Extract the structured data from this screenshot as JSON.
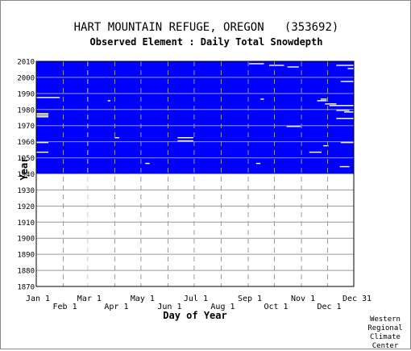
{
  "chart_data": {
    "type": "heatmap",
    "title": "HART MOUNTAIN REFUGE, OREGON   (353692)",
    "subtitle": "Observed Element : Daily Total Snowdepth",
    "xlabel": "Day of Year",
    "ylabel": "Year",
    "x_range": [
      1,
      365
    ],
    "y_range": [
      1870,
      2010
    ],
    "x_ticks_upper": [
      {
        "label": "Jan 1",
        "day": 1
      },
      {
        "label": "Mar 1",
        "day": 60
      },
      {
        "label": "May 1",
        "day": 121
      },
      {
        "label": "Jul 1",
        "day": 182
      },
      {
        "label": "Sep 1",
        "day": 244
      },
      {
        "label": "Nov 1",
        "day": 305
      },
      {
        "label": "Dec 31",
        "day": 365
      }
    ],
    "x_ticks_lower": [
      {
        "label": "Feb 1",
        "day": 32
      },
      {
        "label": "Apr 1",
        "day": 91
      },
      {
        "label": "Jun 1",
        "day": 152
      },
      {
        "label": "Aug 1",
        "day": 213
      },
      {
        "label": "Oct 1",
        "day": 274
      },
      {
        "label": "Dec 1",
        "day": 335
      }
    ],
    "y_ticks": [
      1870,
      1880,
      1890,
      1900,
      1910,
      1920,
      1930,
      1940,
      1950,
      1960,
      1970,
      1980,
      1990,
      2000,
      2010
    ],
    "data_coverage": {
      "first_year": 1940,
      "last_year": 2009,
      "first_day": 1,
      "last_day": 365
    },
    "grid": true,
    "colors": {
      "observed": "#0000ff",
      "missing": "#ffffff",
      "grid": "#999999"
    },
    "missing_segments": [
      {
        "year": 2008,
        "start_day": 245,
        "end_day": 262
      },
      {
        "year": 2007,
        "start_day": 268,
        "end_day": 285
      },
      {
        "year": 2007,
        "start_day": 345,
        "end_day": 365
      },
      {
        "year": 2006,
        "start_day": 289,
        "end_day": 302
      },
      {
        "year": 2005,
        "start_day": 358,
        "end_day": 365
      },
      {
        "year": 1997,
        "start_day": 350,
        "end_day": 365
      },
      {
        "year": 1987,
        "start_day": 1,
        "end_day": 28
      },
      {
        "year": 1986,
        "start_day": 258,
        "end_day": 262
      },
      {
        "year": 1986,
        "start_day": 327,
        "end_day": 334
      },
      {
        "year": 1985,
        "start_day": 83,
        "end_day": 86
      },
      {
        "year": 1985,
        "start_day": 323,
        "end_day": 334
      },
      {
        "year": 1983,
        "start_day": 332,
        "end_day": 345
      },
      {
        "year": 1982,
        "start_day": 337,
        "end_day": 365
      },
      {
        "year": 1979,
        "start_day": 345,
        "end_day": 360
      },
      {
        "year": 1978,
        "start_day": 354,
        "end_day": 365
      },
      {
        "year": 1977,
        "start_day": 1,
        "end_day": 15
      },
      {
        "year": 1976,
        "start_day": 1,
        "end_day": 15
      },
      {
        "year": 1975,
        "start_day": 1,
        "end_day": 15
      },
      {
        "year": 1974,
        "start_day": 345,
        "end_day": 365
      },
      {
        "year": 1969,
        "start_day": 288,
        "end_day": 304
      },
      {
        "year": 1962,
        "start_day": 91,
        "end_day": 96
      },
      {
        "year": 1962,
        "start_day": 163,
        "end_day": 181
      },
      {
        "year": 1960,
        "start_day": 163,
        "end_day": 181
      },
      {
        "year": 1959,
        "start_day": 1,
        "end_day": 15
      },
      {
        "year": 1959,
        "start_day": 350,
        "end_day": 365
      },
      {
        "year": 1957,
        "start_day": 330,
        "end_day": 336
      },
      {
        "year": 1953,
        "start_day": 1,
        "end_day": 15
      },
      {
        "year": 1953,
        "start_day": 314,
        "end_day": 328
      },
      {
        "year": 1946,
        "start_day": 253,
        "end_day": 258
      },
      {
        "year": 1946,
        "start_day": 126,
        "end_day": 131
      },
      {
        "year": 1944,
        "start_day": 349,
        "end_day": 360
      }
    ]
  },
  "credit": [
    "Western",
    "Regional",
    "Climate",
    "Center"
  ]
}
